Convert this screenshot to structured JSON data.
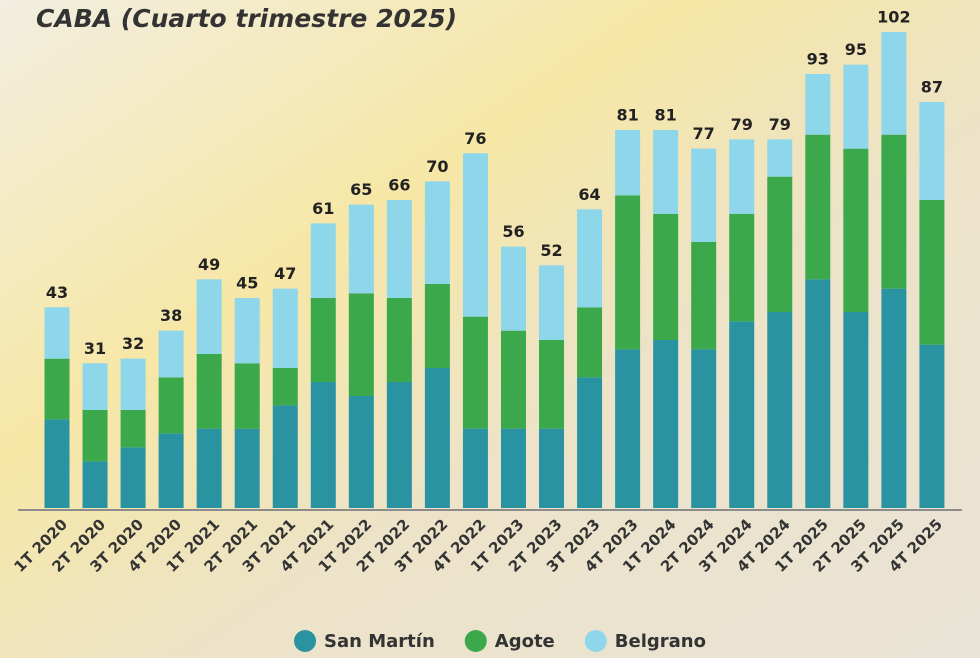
{
  "chart_data": {
    "type": "stacked_bar",
    "title": "CABA (Cuarto trimestre 2025)",
    "categories": [
      "1T 2020",
      "2T 2020",
      "3T 2020",
      "4T 2020",
      "1T 2021",
      "2T 2021",
      "3T 2021",
      "4T 2021",
      "1T 2022",
      "2T 2022",
      "3T 2022",
      "4T 2022",
      "1T 2023",
      "2T 2023",
      "3T 2023",
      "4T 2023",
      "1T 2024",
      "2T 2024",
      "3T 2024",
      "4T 2024",
      "1T 2025",
      "2T 2025",
      "3T 2025",
      "4T 2025"
    ],
    "series": [
      {
        "name": "San Martín",
        "color": "#2a93a1",
        "values": [
          19,
          10,
          13,
          16,
          17,
          17,
          22,
          27,
          24,
          27,
          30,
          17,
          17,
          17,
          28,
          34,
          36,
          34,
          40,
          42,
          49,
          42,
          47,
          35
        ]
      },
      {
        "name": "Agote",
        "color": "#3ba84b",
        "values": [
          13,
          11,
          8,
          12,
          16,
          14,
          8,
          18,
          22,
          18,
          18,
          24,
          21,
          19,
          15,
          33,
          27,
          23,
          23,
          29,
          31,
          35,
          33,
          31
        ]
      },
      {
        "name": "Belgrano",
        "color": "#8ed6ea",
        "values": [
          11,
          10,
          11,
          10,
          16,
          14,
          17,
          16,
          19,
          21,
          22,
          35,
          18,
          16,
          21,
          14,
          18,
          20,
          16,
          8,
          13,
          18,
          22,
          21
        ]
      }
    ],
    "totals": [
      43,
      31,
      32,
      38,
      49,
      45,
      47,
      61,
      65,
      66,
      70,
      76,
      56,
      52,
      64,
      81,
      81,
      77,
      79,
      79,
      93,
      95,
      102,
      87
    ],
    "ylim": [
      0,
      102
    ],
    "legend": "bottom"
  }
}
